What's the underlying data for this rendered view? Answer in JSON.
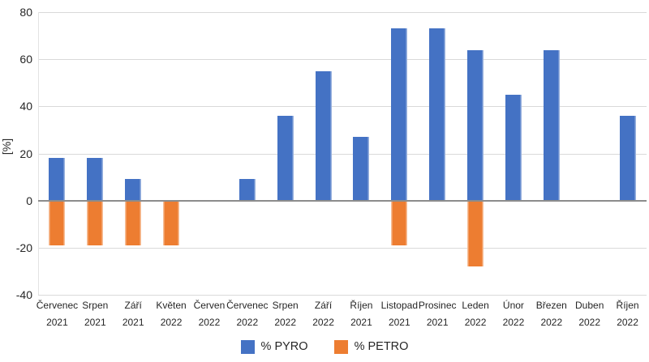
{
  "chart_data": {
    "type": "bar",
    "title": "",
    "xlabel": "",
    "ylabel": "[%]",
    "ylim": [
      -40,
      80
    ],
    "yticks": [
      80,
      60,
      40,
      20,
      0,
      -20,
      -40
    ],
    "grid": true,
    "legend_position": "bottom-center",
    "categories": [
      {
        "month": "Červenec",
        "year": "2021"
      },
      {
        "month": "Srpen",
        "year": "2021"
      },
      {
        "month": "Září",
        "year": "2021"
      },
      {
        "month": "Květen",
        "year": "2022"
      },
      {
        "month": "Červen",
        "year": "2022"
      },
      {
        "month": "Červenec",
        "year": "2022"
      },
      {
        "month": "Srpen",
        "year": "2022"
      },
      {
        "month": "Září",
        "year": "2022"
      },
      {
        "month": "Říjen",
        "year": "2021"
      },
      {
        "month": "Listopad",
        "year": "2021"
      },
      {
        "month": "Prosinec",
        "year": "2021"
      },
      {
        "month": "Leden",
        "year": "2022"
      },
      {
        "month": "Únor",
        "year": "2022"
      },
      {
        "month": "Březen",
        "year": "2022"
      },
      {
        "month": "Duben",
        "year": "2022"
      },
      {
        "month": "Říjen",
        "year": "2022"
      }
    ],
    "series": [
      {
        "name": "% PYRO",
        "color": "#4472C4",
        "values": [
          18,
          18,
          9,
          0,
          0,
          9,
          36,
          55,
          27,
          73,
          73,
          64,
          45,
          64,
          0,
          36
        ]
      },
      {
        "name": "% PETRO",
        "color": "#ED7D31",
        "values": [
          -19,
          -19,
          -19,
          -19,
          0,
          0,
          0,
          0,
          0,
          -19,
          0,
          -28,
          0,
          0,
          0,
          0
        ]
      }
    ],
    "colors": {
      "gridline": "#D9D9D9",
      "zero_line": "#8C8C8C",
      "text": "#262626"
    }
  }
}
